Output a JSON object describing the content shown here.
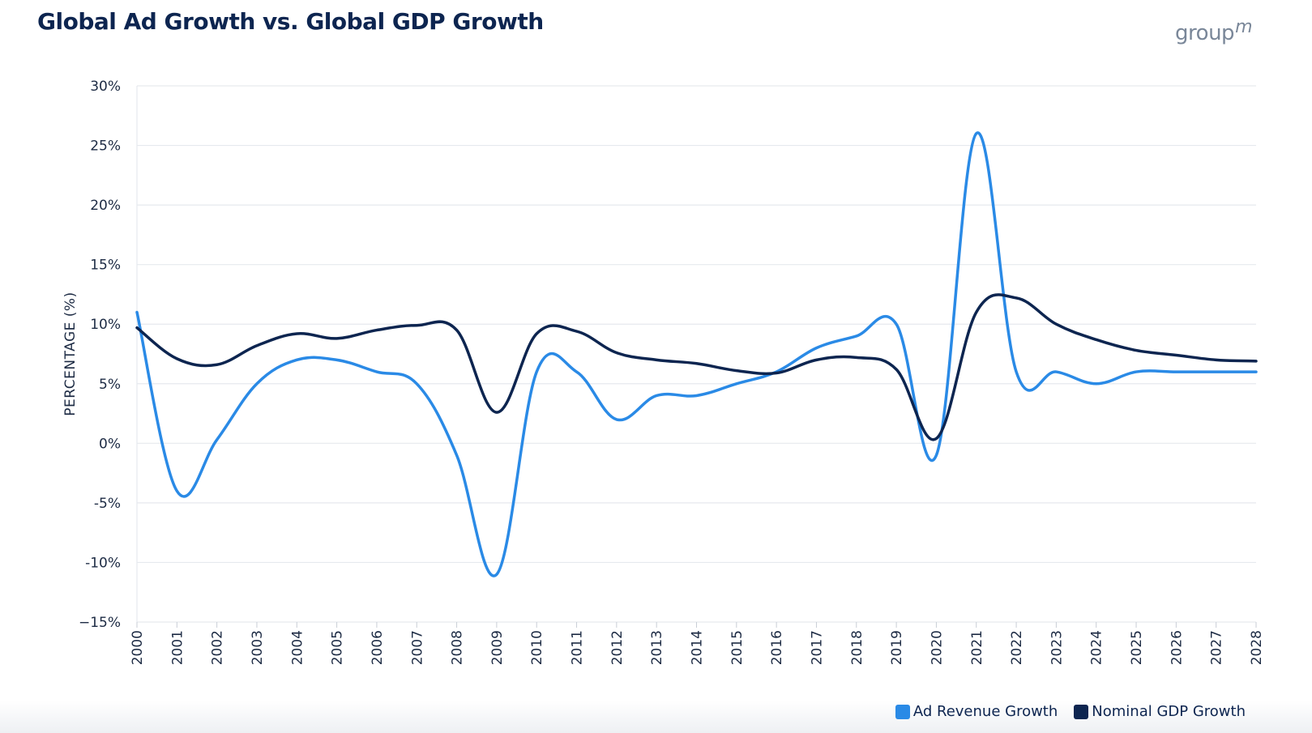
{
  "header": {
    "title": "Global Ad Growth vs. Global GDP Growth",
    "logo_text": "group",
    "logo_superscript": "m"
  },
  "colors": {
    "title": "#0d2550",
    "ad_series": "#2a8ae6",
    "gdp_series": "#0d2550",
    "grid": "#e6e9ee",
    "axis_text": "#1d2b44"
  },
  "chart_data": {
    "type": "line",
    "title": "Global Ad Growth vs. Global GDP Growth",
    "xlabel": "",
    "ylabel": "PERCENTAGE (%)",
    "ylim": [
      -15,
      30
    ],
    "yticks": [
      -15,
      -10,
      -5,
      0,
      5,
      10,
      15,
      20,
      25,
      30
    ],
    "ytick_labels": [
      "−15%",
      "-10%",
      "-5%",
      "0%",
      "5%",
      "10%",
      "15%",
      "20%",
      "25%",
      "30%"
    ],
    "x": [
      "2000",
      "2001",
      "2002",
      "2003",
      "2004",
      "2005",
      "2006",
      "2007",
      "2008",
      "2009",
      "2010",
      "2011",
      "2012",
      "2013",
      "2014",
      "2015",
      "2016",
      "2017",
      "2018",
      "2019",
      "2020",
      "2021",
      "2022",
      "2023",
      "2024",
      "2025",
      "2026",
      "2027",
      "2028"
    ],
    "grid": true,
    "legend_position": "bottom-right",
    "series": [
      {
        "name": "Ad Revenue Growth",
        "color": "#2a8ae6",
        "values": [
          11,
          -4,
          0.3,
          5,
          7,
          7,
          6,
          5,
          -1,
          -11,
          6,
          6,
          2,
          4,
          4,
          5,
          6,
          8,
          9,
          10,
          -1,
          26,
          6,
          6,
          5,
          6,
          6,
          6,
          6
        ]
      },
      {
        "name": "Nominal GDP Growth",
        "color": "#0d2550",
        "values": [
          9.7,
          7.1,
          6.6,
          8.2,
          9.2,
          8.8,
          9.5,
          9.9,
          9.5,
          2.6,
          9.2,
          9.4,
          7.6,
          7,
          6.7,
          6.1,
          5.9,
          7,
          7.2,
          6.2,
          0.4,
          11,
          12.2,
          10,
          8.7,
          7.8,
          7.4,
          7,
          6.9
        ]
      }
    ]
  }
}
